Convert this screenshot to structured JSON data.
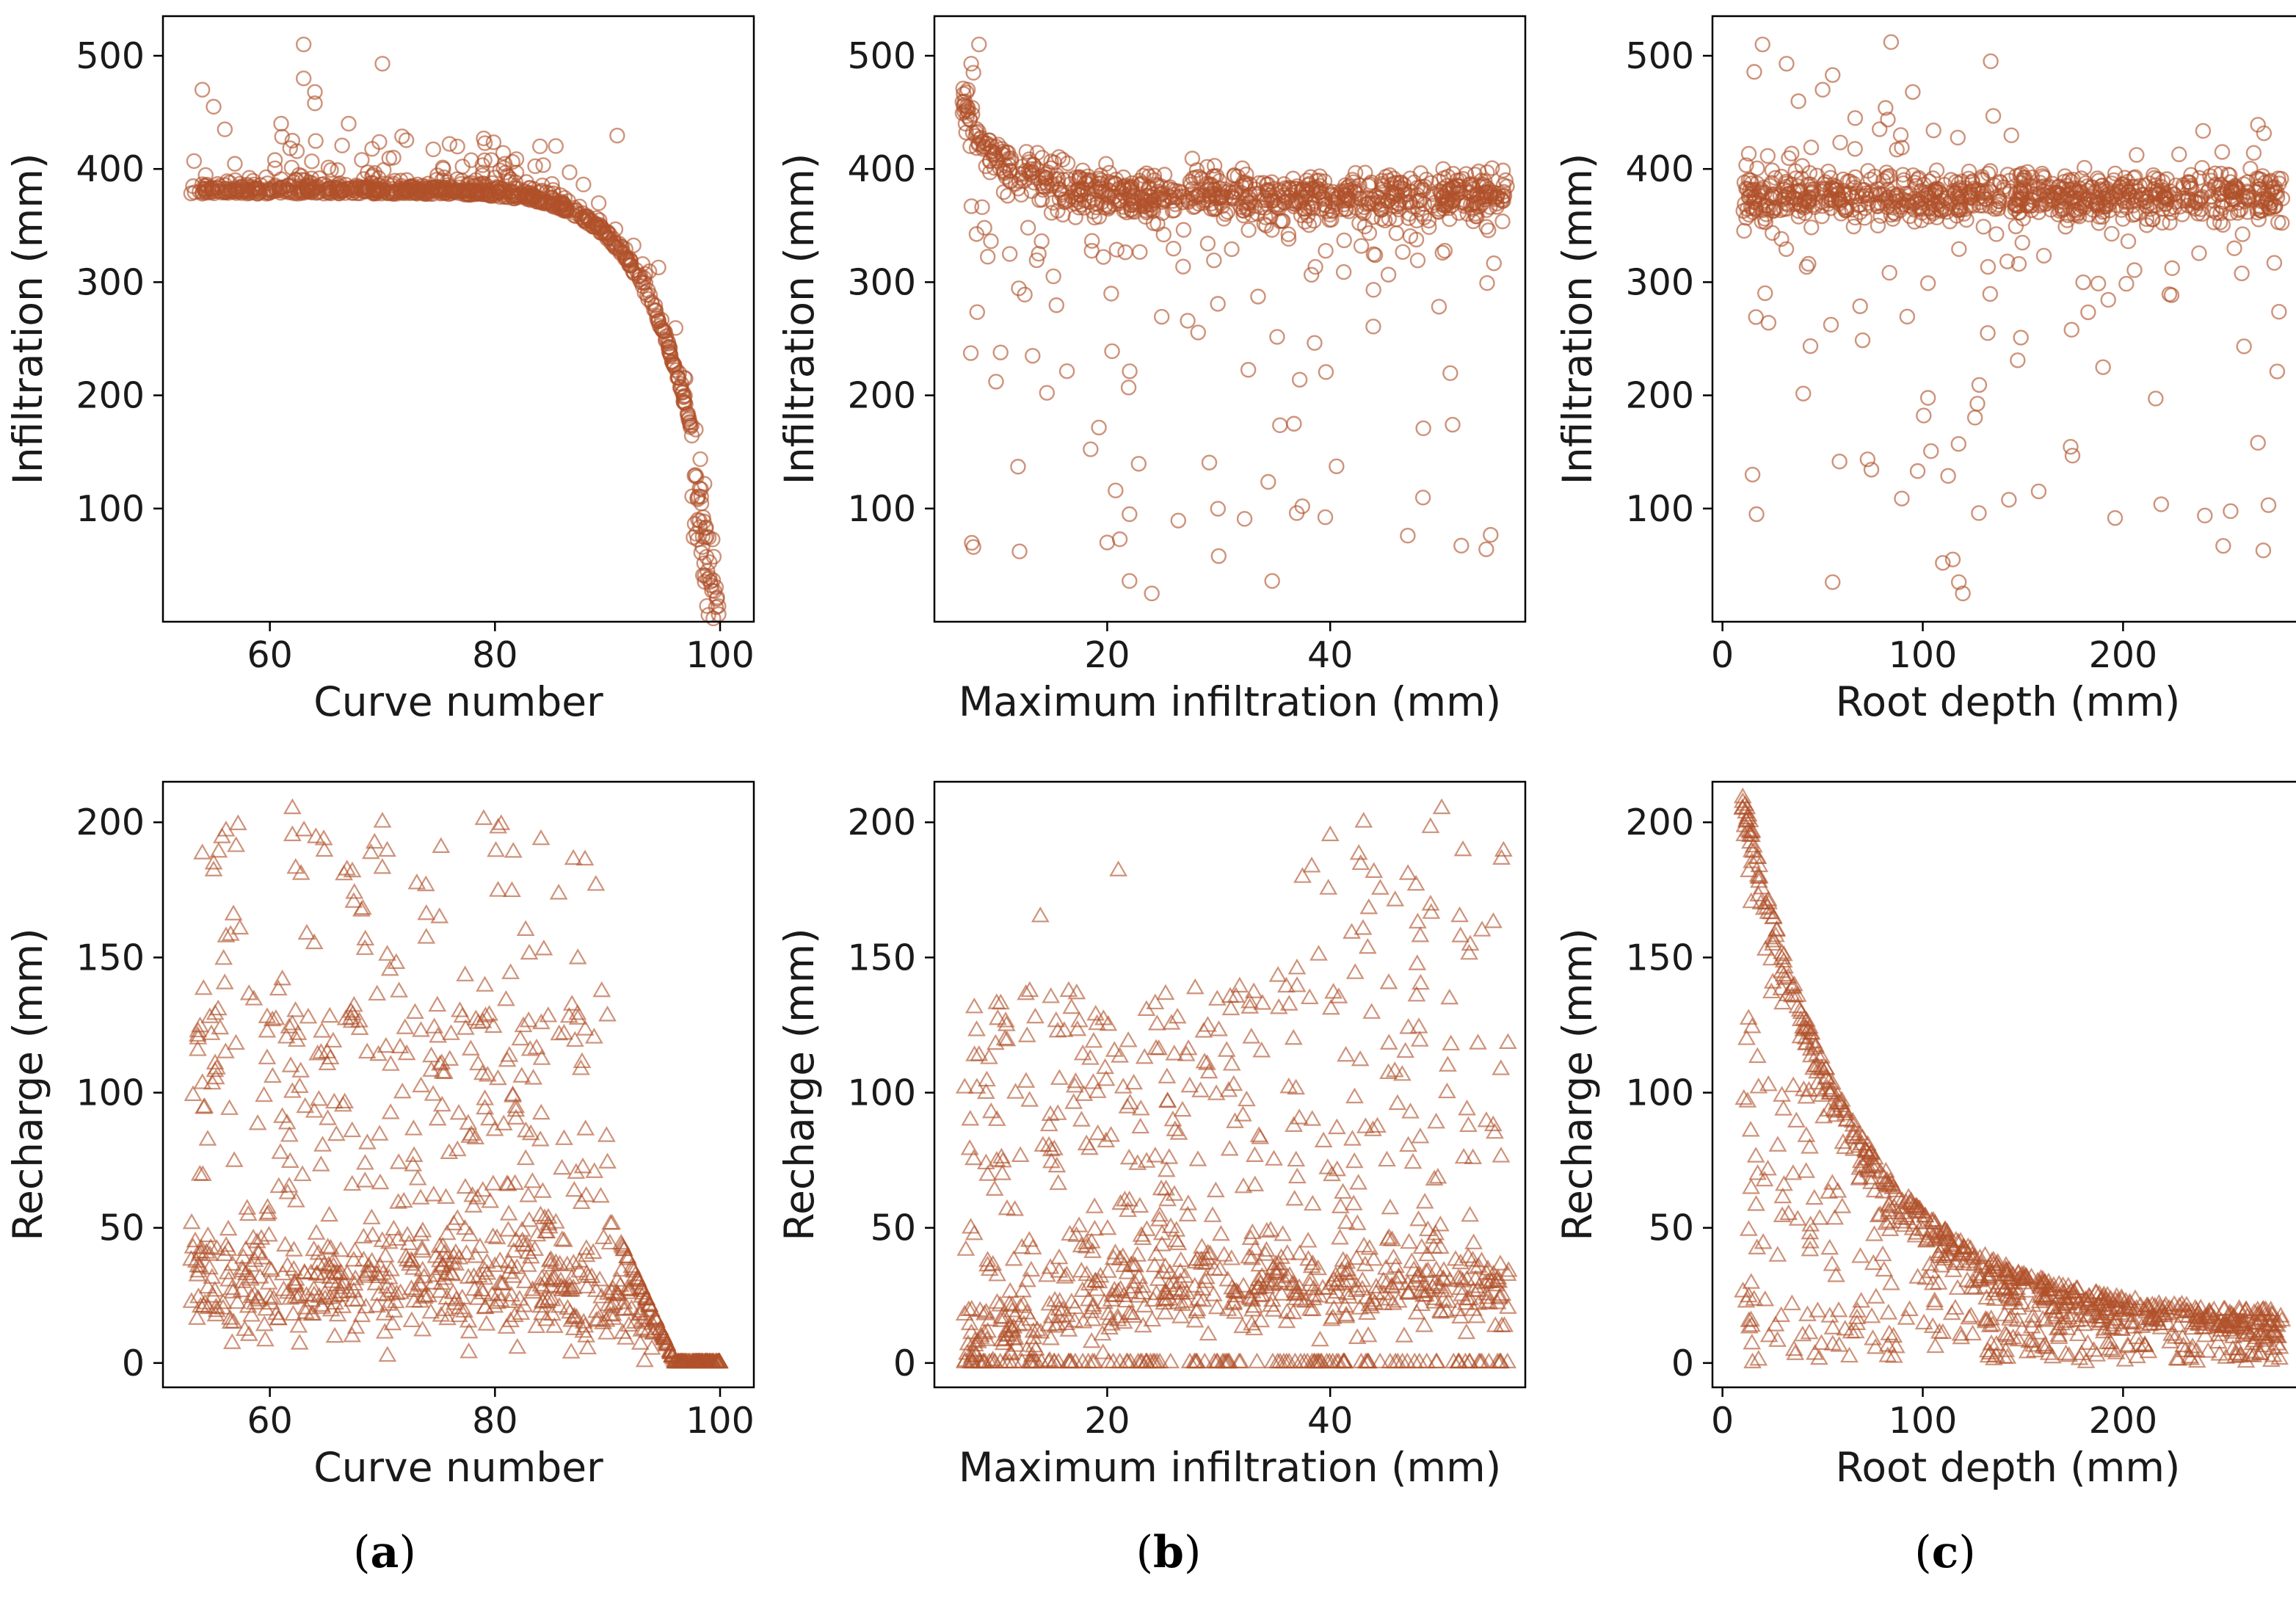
{
  "figure": {
    "marker_color": "#B0502A",
    "panel_labels": [
      {
        "open": "(",
        "letter": "a",
        "close": ")"
      },
      {
        "open": "(",
        "letter": "b",
        "close": ")"
      },
      {
        "open": "(",
        "letter": "c",
        "close": ")"
      }
    ]
  },
  "chart_data": [
    {
      "id": "a-top",
      "type": "scatter",
      "marker": "open-circle",
      "xlabel": "Curve number",
      "ylabel": "Infiltration (mm)",
      "xlim": [
        50.5,
        103
      ],
      "ylim": [
        0,
        535
      ],
      "xticks": [
        60,
        80,
        100
      ],
      "yticks": [
        100,
        200,
        300,
        400,
        500
      ],
      "model": {
        "kind": "cn-infiltration",
        "x_range": [
          53,
          100
        ],
        "n": 900,
        "seed": 11
      },
      "points": [
        [
          63,
          510
        ],
        [
          70,
          493
        ],
        [
          63,
          480
        ],
        [
          64,
          468
        ],
        [
          64,
          458
        ],
        [
          62,
          425
        ],
        [
          61,
          440
        ],
        [
          67,
          440
        ],
        [
          79,
          427
        ],
        [
          84,
          420
        ],
        [
          54,
          470
        ],
        [
          55,
          455
        ],
        [
          56,
          435
        ]
      ]
    },
    {
      "id": "b-top",
      "type": "scatter",
      "marker": "open-circle",
      "xlabel": "Maximum infiltration (mm)",
      "ylabel": "Infiltration (mm)",
      "xlim": [
        4.5,
        57.5
      ],
      "ylim": [
        0,
        535
      ],
      "xticks": [
        20,
        40
      ],
      "yticks": [
        100,
        200,
        300,
        400,
        500
      ],
      "model": {
        "kind": "max-infiltration",
        "x_range": [
          7,
          56
        ],
        "n": 900,
        "seed": 23
      },
      "points": [
        [
          8.5,
          510
        ],
        [
          7.8,
          493
        ],
        [
          8,
          485
        ],
        [
          7.5,
          470
        ],
        [
          8,
          66
        ],
        [
          24,
          25
        ],
        [
          22,
          36
        ],
        [
          20,
          70
        ],
        [
          34.8,
          36
        ],
        [
          30,
          58
        ],
        [
          54,
          64
        ],
        [
          37,
          96
        ],
        [
          37.5,
          102
        ],
        [
          22,
          95
        ],
        [
          12,
          137
        ]
      ]
    },
    {
      "id": "c-top",
      "type": "scatter",
      "marker": "open-circle",
      "xlabel": "Root depth (mm)",
      "ylabel": "Infiltration (mm)",
      "xlim": [
        -5,
        290
      ],
      "ylim": [
        0,
        535
      ],
      "xticks": [
        0,
        100,
        200
      ],
      "yticks": [
        100,
        200,
        300,
        400,
        500
      ],
      "model": {
        "kind": "root-infiltration",
        "x_range": [
          10,
          280
        ],
        "n": 900,
        "seed": 37
      },
      "points": [
        [
          20,
          510
        ],
        [
          32,
          493
        ],
        [
          55,
          483
        ],
        [
          50,
          470
        ],
        [
          95,
          468
        ],
        [
          55,
          35
        ],
        [
          110,
          52
        ],
        [
          115,
          55
        ],
        [
          118,
          35
        ],
        [
          120,
          25
        ],
        [
          128,
          96
        ],
        [
          250,
          67
        ],
        [
          270,
          63
        ],
        [
          17,
          95
        ],
        [
          15,
          130
        ]
      ]
    },
    {
      "id": "a-bottom",
      "type": "scatter",
      "marker": "open-triangle",
      "xlabel": "Curve number",
      "ylabel": "Recharge (mm)",
      "xlim": [
        50.5,
        103
      ],
      "ylim": [
        -9,
        215
      ],
      "xticks": [
        60,
        80,
        100
      ],
      "yticks": [
        0,
        50,
        100,
        150,
        200
      ],
      "model": {
        "kind": "cn-recharge",
        "x_range": [
          53,
          100
        ],
        "n": 900,
        "seed": 41
      },
      "points": [
        [
          62,
          205
        ],
        [
          79,
          201
        ],
        [
          70,
          200
        ],
        [
          62,
          195
        ],
        [
          57,
          191
        ],
        [
          88,
          186
        ],
        [
          55,
          182
        ]
      ]
    },
    {
      "id": "b-bottom",
      "type": "scatter",
      "marker": "open-triangle",
      "xlabel": "Maximum infiltration (mm)",
      "ylabel": "Recharge (mm)",
      "xlim": [
        4.5,
        57.5
      ],
      "ylim": [
        -9,
        215
      ],
      "xticks": [
        20,
        40
      ],
      "yticks": [
        0,
        50,
        100,
        150,
        200
      ],
      "model": {
        "kind": "max-recharge",
        "x_range": [
          7,
          56
        ],
        "n": 900,
        "seed": 53
      },
      "points": [
        [
          50,
          205
        ],
        [
          43,
          200
        ],
        [
          49,
          198
        ],
        [
          40,
          195
        ],
        [
          21,
          182
        ],
        [
          14,
          165
        ]
      ]
    },
    {
      "id": "c-bottom",
      "type": "scatter",
      "marker": "open-triangle",
      "xlabel": "Root depth (mm)",
      "ylabel": "Recharge (mm)",
      "xlim": [
        -5,
        290
      ],
      "ylim": [
        -9,
        215
      ],
      "xticks": [
        0,
        100,
        200
      ],
      "yticks": [
        0,
        50,
        100,
        150,
        200
      ],
      "model": {
        "kind": "root-recharge",
        "x_range": [
          10,
          280
        ],
        "n": 900,
        "seed": 67
      },
      "points": [
        [
          10,
          205
        ],
        [
          12,
          200
        ],
        [
          11,
          195
        ],
        [
          15,
          0
        ],
        [
          18,
          1
        ],
        [
          40,
          10
        ]
      ]
    }
  ]
}
